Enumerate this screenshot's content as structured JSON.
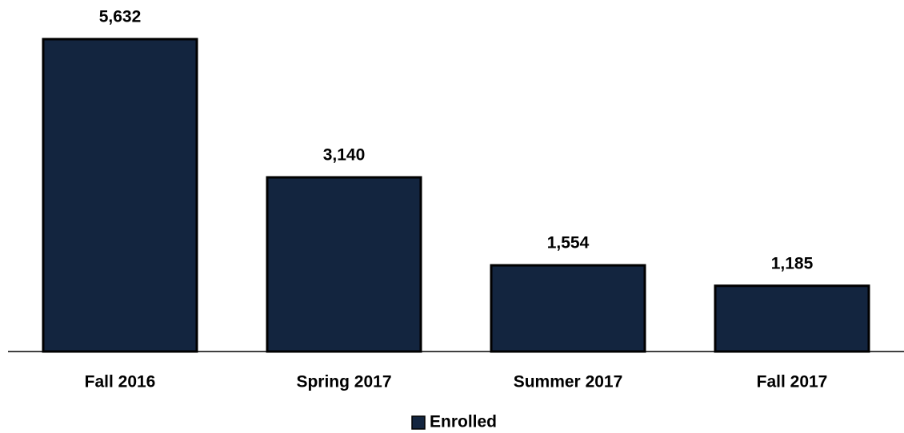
{
  "chart_data": {
    "type": "bar",
    "categories": [
      "Fall 2016",
      "Spring 2017",
      "Summer 2017",
      "Fall 2017"
    ],
    "series": [
      {
        "name": "Enrolled",
        "color": "#13253f",
        "values": [
          5632,
          3140,
          1554,
          1185
        ],
        "value_labels": [
          "5,632",
          "3,140",
          "1,554",
          "1,185"
        ]
      }
    ],
    "legend": "bottom"
  }
}
